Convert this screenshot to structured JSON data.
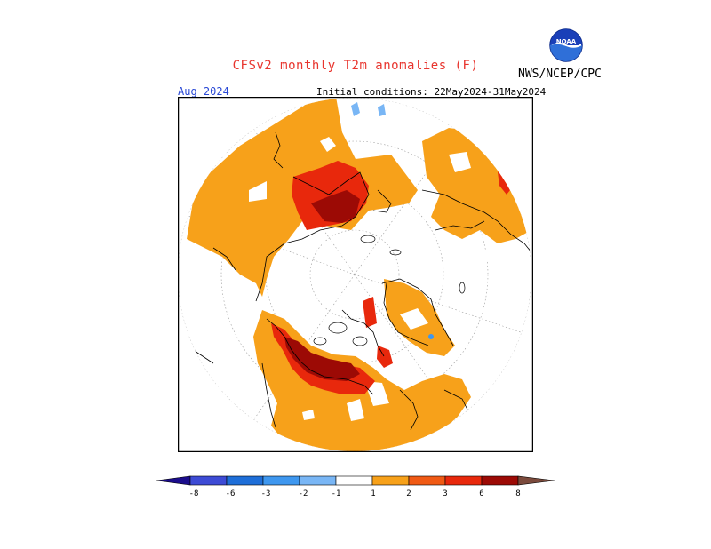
{
  "header": {
    "title": "CFSv2 monthly T2m anomalies (F)",
    "agency": "NWS/NCEP/CPC",
    "logo_text": "NOAA",
    "month": "Aug 2024",
    "initial_conditions": "Initial conditions: 22May2024-31May2024"
  },
  "map": {
    "projection": "polar-stereographic",
    "hemisphere": "north",
    "variable": "T2m anomalies",
    "units": "F"
  },
  "colorbar": {
    "ticks": [
      "-8",
      "-6",
      "-3",
      "-2",
      "-1",
      "1",
      "2",
      "3",
      "6",
      "8"
    ],
    "colors": [
      "#1b0d8c",
      "#3d4bd5",
      "#1e6ed8",
      "#3e97ef",
      "#79b6f5",
      "#ffffff",
      "#f7a11a",
      "#f05a14",
      "#e8280c",
      "#9c0a05",
      "#c9a199",
      "#7b4a3c"
    ]
  }
}
